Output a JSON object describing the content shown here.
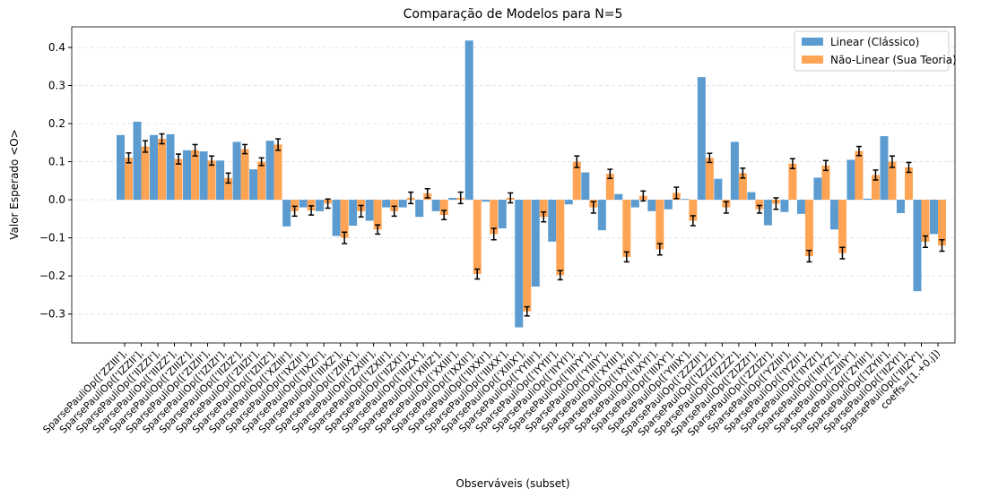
{
  "chart_data": {
    "type": "bar",
    "title": "Comparação de Modelos para N=5",
    "xlabel": "Observáveis (subset)",
    "ylabel": "Valor Esperado <O>",
    "categories": [
      "SparsePauliOp(['ZZIII'],",
      "SparsePauliOp(['IZZII'],",
      "SparsePauliOp(['IIZZI'],",
      "SparsePauliOp(['IIIZZ'],",
      "SparsePauliOp(['ZIIIZ'],",
      "SparsePauliOp(['ZIZII'],",
      "SparsePauliOp(['IZIZI'],",
      "SparsePauliOp(['IIZIZ'],",
      "SparsePauliOp(['ZIIZI'],",
      "SparsePauliOp(['IZIIZ'],",
      "SparsePauliOp(['XZIII'],",
      "SparsePauliOp(['IXZII'],",
      "SparsePauliOp(['IIXZI'],",
      "SparsePauliOp(['IIIXZ'],",
      "SparsePauliOp(['ZIIIX'],",
      "SparsePauliOp(['ZXIII'],",
      "SparsePauliOp(['IZXII'],",
      "SparsePauliOp(['IIZXI'],",
      "SparsePauliOp(['IIIZX'],",
      "SparsePauliOp(['XIIIZ'],",
      "SparsePauliOp(['XXIII'],",
      "SparsePauliOp(['IXXII'],",
      "SparsePauliOp(['IIXXI'],",
      "SparsePauliOp(['IIIXX'],",
      "SparsePauliOp(['XIIIX'],",
      "SparsePauliOp(['YYIII'],",
      "SparsePauliOp(['IYYII'],",
      "SparsePauliOp(['IIYYI'],",
      "SparsePauliOp(['IIIYY'],",
      "SparsePauliOp(['YIIIY'],",
      "SparsePauliOp(['XYIII'],",
      "SparsePauliOp(['IXYII'],",
      "SparsePauliOp(['IIXYI'],",
      "SparsePauliOp(['IIIXY'],",
      "SparsePauliOp(['YIIIX'],",
      "SparsePauliOp(['ZZZII'],",
      "SparsePauliOp(['IZZZI'],",
      "SparsePauliOp(['IIZZZ'],",
      "SparsePauliOp(['ZIZZI'],",
      "SparsePauliOp(['ZZIZI'],",
      "SparsePauliOp(['YZIII'],",
      "SparsePauliOp(['IYZII'],",
      "SparsePauliOp(['IIYZI'],",
      "SparsePauliOp(['IIIYZ'],",
      "SparsePauliOp(['ZIIIY'],",
      "SparsePauliOp(['ZYIII'],",
      "SparsePauliOp(['IZYII'],",
      "SparsePauliOp(['IIZYI'],",
      "SparsePauliOp(['IIIZY'],",
      "coeffs=[1.+0.j])"
    ],
    "series": [
      {
        "name": "Linear (Clássico)",
        "color": "#5b9bd0",
        "values": [
          0.17,
          0.205,
          0.17,
          0.172,
          0.13,
          0.127,
          0.103,
          0.152,
          0.08,
          0.155,
          -0.07,
          -0.02,
          -0.03,
          -0.095,
          -0.068,
          -0.055,
          -0.02,
          -0.02,
          -0.045,
          -0.03,
          0.005,
          0.418,
          -0.005,
          -0.075,
          -0.335,
          -0.228,
          -0.11,
          -0.012,
          0.072,
          -0.08,
          0.015,
          -0.02,
          -0.03,
          -0.025,
          0.002,
          0.322,
          0.055,
          0.152,
          0.02,
          -0.067,
          -0.032,
          -0.037,
          0.058,
          -0.078,
          0.105,
          0.003,
          0.167,
          -0.035,
          -0.24,
          -0.09
        ]
      },
      {
        "name": "Não-Linear (Sua Teoria)",
        "color": "#ffa454",
        "values": [
          0.11,
          0.14,
          0.16,
          0.107,
          0.13,
          0.103,
          0.057,
          0.133,
          0.1,
          0.145,
          -0.03,
          -0.028,
          -0.01,
          -0.1,
          -0.03,
          -0.078,
          -0.03,
          0.005,
          0.017,
          -0.04,
          0.005,
          -0.195,
          -0.09,
          0.005,
          -0.293,
          -0.045,
          -0.198,
          0.1,
          -0.02,
          0.068,
          -0.15,
          0.01,
          -0.13,
          0.018,
          -0.055,
          0.11,
          -0.02,
          0.07,
          -0.025,
          -0.01,
          0.095,
          -0.148,
          0.09,
          -0.14,
          0.128,
          0.065,
          0.1,
          0.085,
          -0.11,
          -0.12
        ],
        "errors": [
          0.013,
          0.015,
          0.013,
          0.013,
          0.015,
          0.012,
          0.013,
          0.012,
          0.01,
          0.015,
          0.013,
          0.012,
          0.012,
          0.015,
          0.015,
          0.012,
          0.013,
          0.015,
          0.012,
          0.012,
          0.015,
          0.013,
          0.015,
          0.013,
          0.012,
          0.013,
          0.012,
          0.015,
          0.015,
          0.012,
          0.013,
          0.013,
          0.015,
          0.015,
          0.013,
          0.012,
          0.015,
          0.013,
          0.01,
          0.015,
          0.013,
          0.015,
          0.013,
          0.015,
          0.012,
          0.013,
          0.015,
          0.013,
          0.015,
          0.015
        ]
      }
    ],
    "ylim": [
      -0.376,
      0.454
    ],
    "yticks": [
      {
        "value": -0.3,
        "label": "−0.3"
      },
      {
        "value": -0.2,
        "label": "−0.2"
      },
      {
        "value": -0.1,
        "label": "−0.1"
      },
      {
        "value": 0,
        "label": "0.0"
      },
      0.1,
      0.2,
      0.3,
      0.4
    ],
    "grid": true,
    "legend": "upper right"
  }
}
